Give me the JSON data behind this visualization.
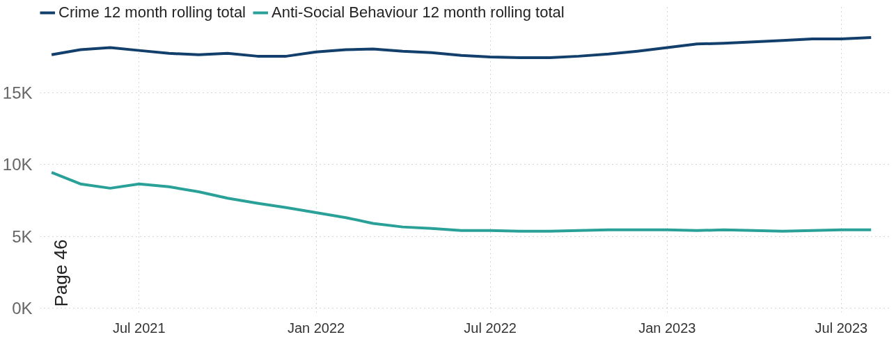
{
  "chart_data": {
    "type": "line",
    "x": [
      "2021-04",
      "2021-05",
      "2021-06",
      "2021-07",
      "2021-08",
      "2021-09",
      "2021-10",
      "2021-11",
      "2021-12",
      "2022-01",
      "2022-02",
      "2022-03",
      "2022-04",
      "2022-05",
      "2022-06",
      "2022-07",
      "2022-08",
      "2022-09",
      "2022-10",
      "2022-11",
      "2022-12",
      "2023-01",
      "2023-02",
      "2023-03",
      "2023-04",
      "2023-05",
      "2023-06",
      "2023-07",
      "2023-08"
    ],
    "series": [
      {
        "name": "Crime 12 month rolling total",
        "color": "#123f6b",
        "values": [
          17650,
          18000,
          18150,
          17950,
          17750,
          17650,
          17750,
          17550,
          17550,
          17850,
          18000,
          18050,
          17900,
          17800,
          17600,
          17500,
          17450,
          17450,
          17550,
          17700,
          17900,
          18150,
          18400,
          18450,
          18550,
          18650,
          18750,
          18750,
          18850
        ]
      },
      {
        "name": "Anti-Social Behaviour 12 month rolling total",
        "color": "#2aa198",
        "values": [
          9450,
          8650,
          8350,
          8650,
          8450,
          8100,
          7650,
          7300,
          7000,
          6650,
          6300,
          5900,
          5650,
          5550,
          5400,
          5400,
          5350,
          5350,
          5400,
          5450,
          5450,
          5450,
          5400,
          5450,
          5400,
          5350,
          5400,
          5450,
          5450
        ]
      }
    ],
    "xlim": [
      "2021-03-20",
      "2023-08-20"
    ],
    "xticks": [
      {
        "value": "2021-07",
        "label": "Jul 2021"
      },
      {
        "value": "2022-01",
        "label": "Jan 2022"
      },
      {
        "value": "2022-07",
        "label": "Jul 2022"
      },
      {
        "value": "2023-01",
        "label": "Jan 2023"
      },
      {
        "value": "2023-07",
        "label": "Jul 2023"
      }
    ],
    "ylim": [
      -300,
      21200
    ],
    "yticks": [
      {
        "value": 0,
        "label": "0K"
      },
      {
        "value": 5000,
        "label": "5K"
      },
      {
        "value": 10000,
        "label": "10K"
      },
      {
        "value": 15000,
        "label": "15K"
      }
    ],
    "grid": true,
    "legend": "top left",
    "marker": "none",
    "line_style": "solid",
    "annotations": [
      "Page 46"
    ]
  }
}
